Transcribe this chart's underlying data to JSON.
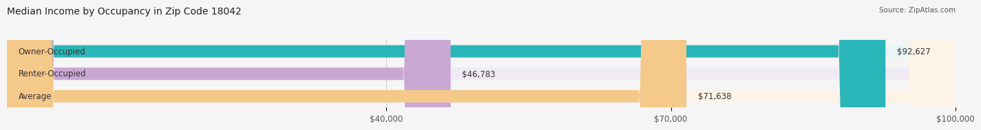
{
  "title": "Median Income by Occupancy in Zip Code 18042",
  "source": "Source: ZipAtlas.com",
  "categories": [
    "Owner-Occupied",
    "Renter-Occupied",
    "Average"
  ],
  "values": [
    92627,
    46783,
    71638
  ],
  "labels": [
    "$92,627",
    "$46,783",
    "$71,638"
  ],
  "bar_colors": [
    "#2ab5b8",
    "#c9a8d4",
    "#f5c98a"
  ],
  "bar_bg_colors": [
    "#e8f6f6",
    "#f0eaf5",
    "#fdf3e7"
  ],
  "xlim": [
    0,
    100000
  ],
  "xticks": [
    40000,
    70000,
    100000
  ],
  "xticklabels": [
    "$40,000",
    "$70,000",
    "$100,000"
  ],
  "title_fontsize": 10,
  "source_fontsize": 7.5,
  "label_fontsize": 8.5,
  "cat_fontsize": 8.5,
  "background_color": "#f5f5f5"
}
